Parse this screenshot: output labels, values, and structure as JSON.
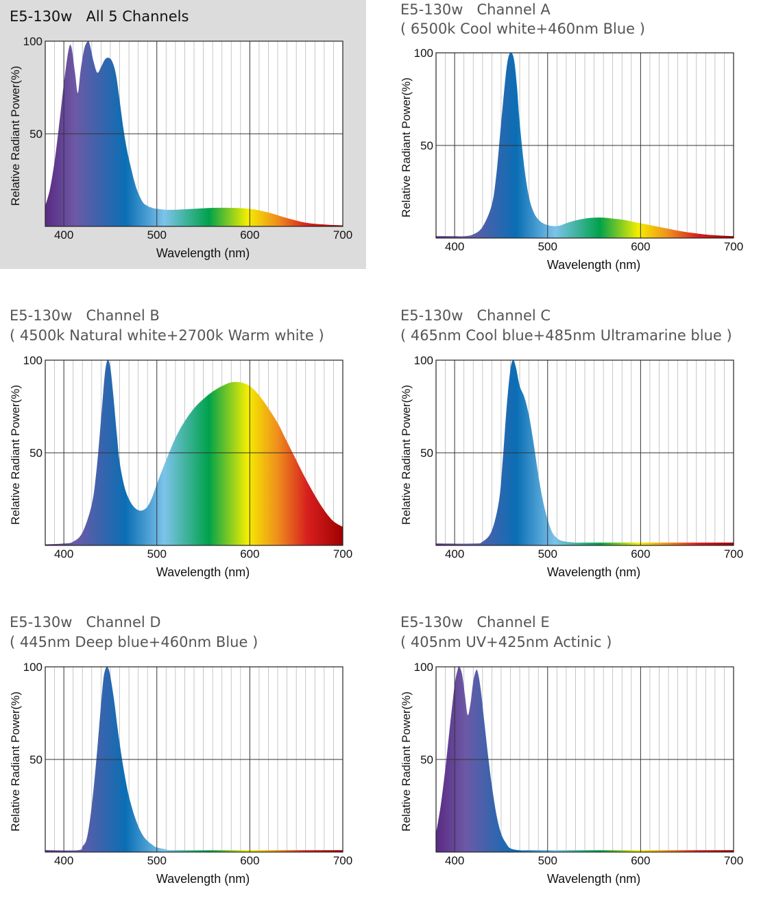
{
  "colors": {
    "highlight_background": "#dcdcdc",
    "spectrum": [
      "#5a2a82",
      "#6c59a6",
      "#0a6eb4",
      "#7cc3ea",
      "#00a24b",
      "#f4ee00",
      "#ef8f1c",
      "#d7201f",
      "#a00000"
    ]
  },
  "chart_data": [
    {
      "type": "area",
      "title": "E5-130w   All 5 Channels",
      "subtitle": "",
      "xlabel": "Wavelength (nm)",
      "ylabel": "Relative Radiant Power(%)",
      "xlim": [
        380,
        700
      ],
      "ylim": [
        0,
        100
      ],
      "xticks": [
        400,
        500,
        600,
        700
      ],
      "yticks": [
        50,
        100
      ],
      "grid": true,
      "highlighted": true,
      "x": [
        380,
        385,
        390,
        395,
        400,
        405,
        408,
        412,
        415,
        418,
        422,
        426,
        428,
        432,
        436,
        440,
        444,
        448,
        452,
        456,
        460,
        464,
        468,
        472,
        476,
        480,
        485,
        490,
        495,
        500,
        510,
        520,
        540,
        560,
        580,
        600,
        620,
        640,
        660,
        680,
        700
      ],
      "values": [
        11,
        20,
        35,
        55,
        77,
        95,
        97,
        83,
        72,
        84,
        96,
        100,
        98,
        89,
        83,
        86,
        90,
        91,
        89,
        82,
        68,
        53,
        41,
        32,
        24,
        18,
        13,
        11,
        10,
        9.5,
        9,
        9,
        9.5,
        10,
        10,
        9.5,
        7.5,
        4.5,
        2,
        1,
        0.5
      ]
    },
    {
      "type": "area",
      "title": "E5-130w   Channel A",
      "subtitle": "( 6500k Cool white+460nm Blue )",
      "xlabel": "Wavelength (nm)",
      "ylabel": "Relative Radiant Power(%)",
      "xlim": [
        380,
        700
      ],
      "ylim": [
        0,
        100
      ],
      "xticks": [
        400,
        500,
        600,
        700
      ],
      "yticks": [
        50,
        100
      ],
      "grid": true,
      "highlighted": false,
      "x": [
        380,
        400,
        410,
        420,
        430,
        440,
        445,
        450,
        455,
        458,
        461,
        464,
        467,
        470,
        475,
        480,
        485,
        490,
        495,
        500,
        505,
        510,
        515,
        520,
        530,
        540,
        550,
        560,
        570,
        580,
        590,
        600,
        620,
        640,
        660,
        680,
        700
      ],
      "values": [
        1,
        1,
        1,
        2,
        6,
        18,
        35,
        62,
        88,
        98,
        100,
        96,
        82,
        62,
        38,
        22,
        14,
        10,
        8,
        7,
        6.5,
        6.5,
        7,
        8,
        9.5,
        10.5,
        11,
        11,
        10.5,
        10,
        9,
        8,
        6,
        4,
        2.5,
        1.5,
        1
      ]
    },
    {
      "type": "area",
      "title": "E5-130w   Channel B",
      "subtitle": "( 4500k Natural white+2700k Warm white )",
      "xlabel": "Wavelength (nm)",
      "ylabel": "Relative Radiant Power(%)",
      "xlim": [
        380,
        700
      ],
      "ylim": [
        0,
        100
      ],
      "xticks": [
        400,
        500,
        600,
        700
      ],
      "yticks": [
        50,
        100
      ],
      "grid": true,
      "highlighted": false,
      "x": [
        380,
        400,
        410,
        420,
        430,
        435,
        440,
        444,
        447,
        450,
        453,
        457,
        460,
        465,
        470,
        475,
        480,
        485,
        490,
        495,
        500,
        510,
        520,
        530,
        540,
        550,
        560,
        570,
        580,
        590,
        600,
        610,
        620,
        630,
        640,
        650,
        660,
        670,
        680,
        690,
        700
      ],
      "values": [
        0.5,
        1,
        2,
        7,
        22,
        40,
        68,
        92,
        100,
        96,
        82,
        60,
        45,
        32,
        25,
        21,
        19,
        19,
        21,
        26,
        33,
        46,
        58,
        67,
        74,
        79,
        83,
        86,
        88,
        88,
        86,
        81,
        74,
        66,
        56,
        46,
        36,
        27,
        19,
        13,
        10
      ]
    },
    {
      "type": "area",
      "title": "E5-130w   Channel C",
      "subtitle": "( 465nm Cool blue+485nm Ultramarine blue )",
      "xlabel": "Wavelength (nm)",
      "ylabel": "Relative Radiant Power(%)",
      "xlim": [
        380,
        700
      ],
      "ylim": [
        0,
        100
      ],
      "xticks": [
        400,
        500,
        600,
        700
      ],
      "yticks": [
        50,
        100
      ],
      "grid": true,
      "highlighted": false,
      "x": [
        380,
        420,
        430,
        440,
        448,
        452,
        456,
        460,
        463,
        466,
        470,
        475,
        480,
        485,
        490,
        495,
        500,
        505,
        510,
        515,
        520,
        530,
        540,
        560,
        600,
        700
      ],
      "values": [
        1,
        1,
        2,
        8,
        25,
        48,
        75,
        95,
        100,
        96,
        86,
        80,
        70,
        55,
        38,
        24,
        14,
        7,
        4,
        2.5,
        2,
        1.5,
        1.5,
        1.5,
        1.5,
        1.5
      ]
    },
    {
      "type": "area",
      "title": "E5-130w   Channel D",
      "subtitle": "( 445nm Deep blue+460nm Blue )",
      "xlabel": "Wavelength (nm)",
      "ylabel": "Relative Radiant Power(%)",
      "xlim": [
        380,
        700
      ],
      "ylim": [
        0,
        100
      ],
      "xticks": [
        400,
        500,
        600,
        700
      ],
      "yticks": [
        50,
        100
      ],
      "grid": true,
      "highlighted": false,
      "x": [
        380,
        415,
        420,
        425,
        430,
        435,
        440,
        443,
        446,
        448,
        450,
        454,
        458,
        462,
        466,
        470,
        475,
        480,
        485,
        490,
        495,
        500,
        510,
        520,
        600,
        700
      ],
      "values": [
        1,
        1,
        3,
        8,
        25,
        50,
        80,
        95,
        100,
        99,
        95,
        82,
        66,
        52,
        40,
        30,
        21,
        14,
        9,
        6,
        4,
        2.5,
        1.5,
        1,
        1,
        1
      ]
    },
    {
      "type": "area",
      "title": "E5-130w   Channel E",
      "subtitle": "( 405nm UV+425nm Actinic )",
      "xlabel": "Wavelength (nm)",
      "ylabel": "Relative Radiant Power(%)",
      "xlim": [
        380,
        700
      ],
      "ylim": [
        0,
        100
      ],
      "xticks": [
        400,
        500,
        600,
        700
      ],
      "yticks": [
        50,
        100
      ],
      "grid": true,
      "highlighted": false,
      "x": [
        380,
        385,
        390,
        395,
        400,
        403,
        405,
        408,
        411,
        414,
        417,
        420,
        423,
        425,
        428,
        432,
        436,
        440,
        445,
        450,
        455,
        460,
        470,
        480,
        500,
        700
      ],
      "values": [
        10,
        25,
        45,
        68,
        90,
        98,
        100,
        96,
        85,
        74,
        80,
        92,
        98,
        97,
        88,
        70,
        52,
        36,
        20,
        10,
        5,
        2,
        1,
        1,
        1,
        1
      ]
    }
  ]
}
